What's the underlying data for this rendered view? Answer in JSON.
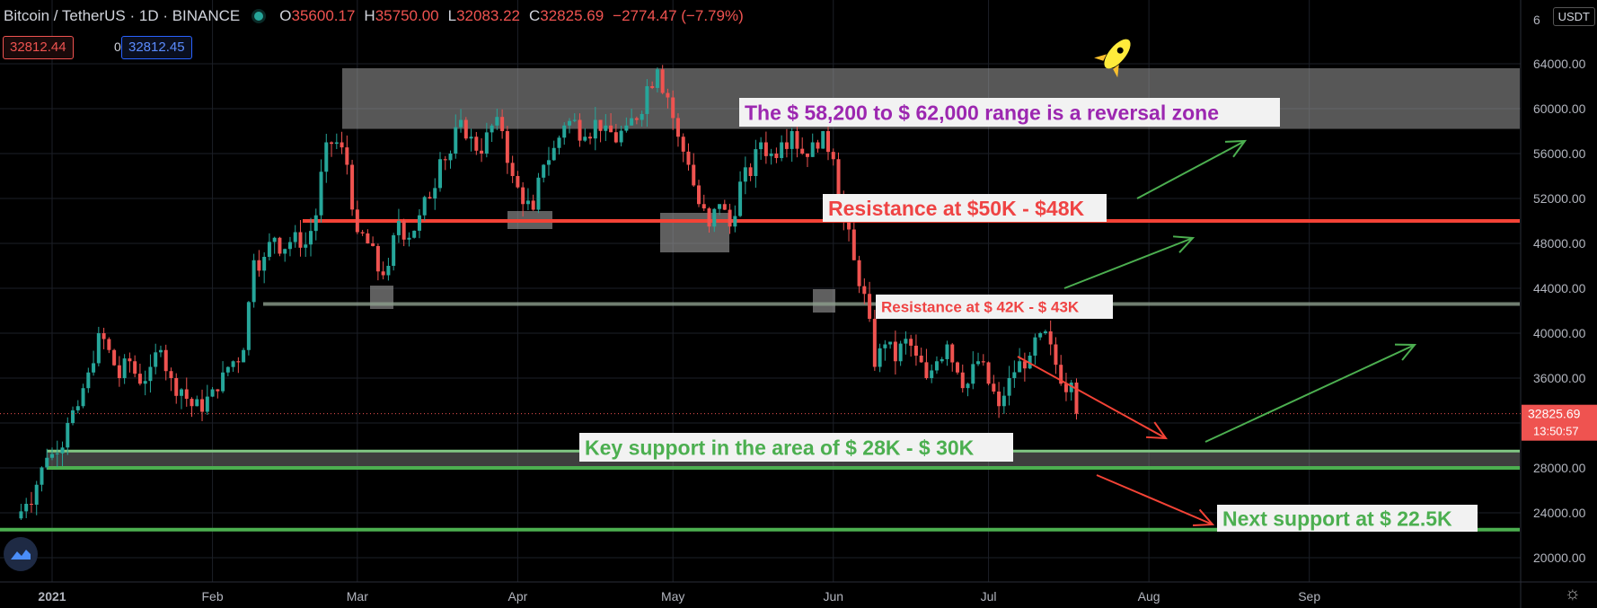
{
  "header": {
    "symbol": "Bitcoin / TetherUS · 1D · BINANCE",
    "open_key": "O",
    "open": "35600.17",
    "high_key": "H",
    "high": "35750.00",
    "low_key": "L",
    "low": "32083.22",
    "close_key": "C",
    "close": "32825.69",
    "change": "−2774.47 (−7.79%)"
  },
  "price_boxes": {
    "bid": "32812.44",
    "spread": "0.01",
    "ask": "32812.45"
  },
  "currency_button": "USDT",
  "colors": {
    "up": "#26a69a",
    "down": "#ef5350",
    "resistance": "#ef4444",
    "support": "#4caf50",
    "purple": "#9c27b0"
  },
  "chart_data": {
    "type": "candlestick",
    "x_labels": [
      "2021",
      "Feb",
      "Mar",
      "Apr",
      "May",
      "Jun",
      "Jul",
      "Aug",
      "Sep"
    ],
    "y_ticks": [
      "64000.00",
      "60000.00",
      "56000.00",
      "52000.00",
      "48000.00",
      "44000.00",
      "40000.00",
      "36000.00",
      "28000.00",
      "24000.00",
      "20000.00"
    ],
    "y_top_partial": "6",
    "ylim": [
      18500,
      67000
    ],
    "price_label": {
      "value": "32825.69",
      "timer": "13:50:57"
    },
    "close_series": [
      [
        -7,
        23500
      ],
      [
        -5,
        24800
      ],
      [
        -3,
        26500
      ],
      [
        -1,
        28900
      ],
      [
        1,
        29300
      ],
      [
        3,
        32000
      ],
      [
        5,
        33500
      ],
      [
        7,
        36500
      ],
      [
        9,
        40000
      ],
      [
        11,
        38500
      ],
      [
        13,
        36000
      ],
      [
        15,
        37500
      ],
      [
        17,
        35500
      ],
      [
        19,
        37000
      ],
      [
        21,
        38500
      ],
      [
        23,
        36000
      ],
      [
        25,
        35000
      ],
      [
        27,
        33500
      ],
      [
        29,
        33000
      ],
      [
        31,
        35000
      ],
      [
        33,
        36500
      ],
      [
        35,
        37500
      ],
      [
        37,
        38500
      ],
      [
        39,
        46500
      ],
      [
        41,
        46800
      ],
      [
        43,
        48500
      ],
      [
        45,
        47500
      ],
      [
        47,
        49000
      ],
      [
        49,
        47900
      ],
      [
        51,
        50500
      ],
      [
        53,
        57000
      ],
      [
        55,
        57000
      ],
      [
        57,
        55000
      ],
      [
        59,
        49000
      ],
      [
        61,
        48000
      ],
      [
        63,
        45500
      ],
      [
        65,
        46000
      ],
      [
        67,
        50000
      ],
      [
        69,
        48500
      ],
      [
        71,
        50500
      ],
      [
        73,
        52000
      ],
      [
        75,
        55500
      ],
      [
        77,
        56000
      ],
      [
        79,
        59000
      ],
      [
        81,
        57500
      ],
      [
        83,
        56000
      ],
      [
        85,
        58500
      ],
      [
        87,
        58000
      ],
      [
        89,
        54000
      ],
      [
        91,
        51500
      ],
      [
        93,
        51000
      ],
      [
        95,
        55000
      ],
      [
        97,
        56500
      ],
      [
        99,
        58500
      ],
      [
        101,
        59000
      ],
      [
        103,
        57500
      ],
      [
        105,
        59000
      ],
      [
        107,
        58500
      ],
      [
        109,
        57000
      ],
      [
        111,
        58500
      ],
      [
        113,
        59000
      ],
      [
        115,
        62000
      ],
      [
        117,
        63500
      ],
      [
        119,
        61000
      ],
      [
        121,
        57500
      ],
      [
        123,
        55000
      ],
      [
        125,
        51500
      ],
      [
        127,
        49500
      ],
      [
        129,
        51500
      ],
      [
        131,
        49500
      ],
      [
        133,
        53500
      ],
      [
        135,
        54000
      ],
      [
        137,
        57000
      ],
      [
        139,
        56000
      ],
      [
        141,
        57000
      ],
      [
        143,
        58000
      ],
      [
        145,
        56000
      ],
      [
        147,
        57000
      ],
      [
        149,
        58000
      ],
      [
        151,
        55500
      ],
      [
        153,
        50000
      ],
      [
        155,
        46500
      ],
      [
        157,
        43500
      ],
      [
        159,
        37000
      ],
      [
        161,
        39000
      ],
      [
        163,
        37500
      ],
      [
        165,
        39500
      ],
      [
        167,
        38000
      ],
      [
        169,
        36000
      ],
      [
        171,
        37500
      ],
      [
        173,
        39000
      ],
      [
        175,
        36500
      ],
      [
        177,
        35500
      ],
      [
        179,
        37500
      ],
      [
        181,
        35500
      ],
      [
        183,
        33500
      ],
      [
        185,
        36000
      ],
      [
        187,
        37500
      ],
      [
        189,
        38000
      ],
      [
        191,
        40000
      ],
      [
        193,
        39000
      ],
      [
        195,
        35500
      ],
      [
        197,
        35600
      ],
      [
        198,
        32826
      ]
    ],
    "annotations": [
      {
        "text": "The $ 58,200 to $ 62,000 range is a reversal zone",
        "color": "#9c27b0",
        "kind": "zone",
        "price_from": 58200,
        "price_to": 62000
      },
      {
        "text": "Resistance at $50K - $48K",
        "color": "#ef4444",
        "kind": "line",
        "price": 50000
      },
      {
        "text": "Resistance at $ 42K - $ 43K",
        "color": "#ef4444",
        "kind": "line",
        "price": 42500
      },
      {
        "text": "Key support in the area of $ 28K - $ 30K",
        "color": "#4caf50",
        "kind": "zone",
        "price_from": 28000,
        "price_to": 29200
      },
      {
        "text": "Next support at $ 22.5K",
        "color": "#4caf50",
        "kind": "line",
        "price": 22500
      }
    ]
  }
}
